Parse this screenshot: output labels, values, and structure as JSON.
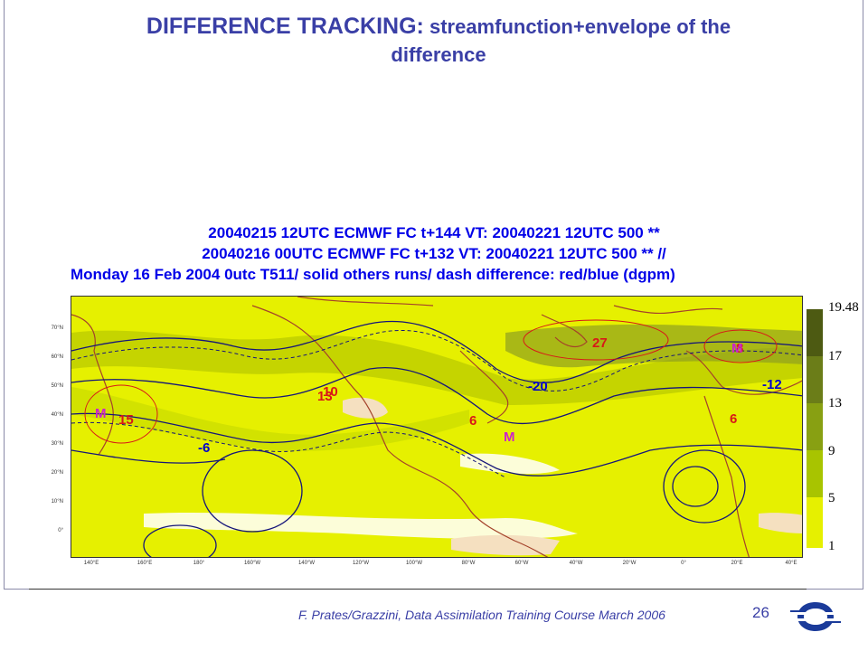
{
  "slide": {
    "title_bold": "DIFFERENCE TRACKING:",
    "title_rest": " streamfunction+envelope of the",
    "title_line2": "difference",
    "footer": "F. Prates/Grazzini,  Data Assimilation Training Course March 2006",
    "page_number": "26",
    "logo_name": "ecmwf-logo"
  },
  "figure": {
    "header_line1": "20040215 12UTC ECMWF  FC t+144 VT:  20040221 12UTC 500 **",
    "header_line2": "20040216 00UTC ECMWF  FC t+132 VT:  20040221 12UTC 500 ** //",
    "header_line3": "Monday 16 Feb 2004 0utc T511/ solid     others runs/ dash     difference: red/blue (dgpm)",
    "lat_labels": [
      "70°N",
      "60°N",
      "50°N",
      "40°N",
      "30°N",
      "20°N",
      "10°N",
      "0°"
    ],
    "lon_labels": [
      "140°E",
      "160°E",
      "180°",
      "160°W",
      "140°W",
      "120°W",
      "100°W",
      "80°W",
      "60°W",
      "40°W",
      "20°W",
      "0°",
      "20°E",
      "40°E"
    ],
    "map_labels": {
      "red": [
        "10",
        "13",
        "15",
        "6",
        "27",
        "6",
        "8"
      ],
      "blue": [
        "-6",
        "-20",
        "-12"
      ],
      "markers": [
        "M",
        "M",
        "M"
      ]
    },
    "colorbar": {
      "labels": [
        "19.48",
        "17",
        "13",
        "9",
        "5",
        "1"
      ],
      "colors": [
        "#4d5a12",
        "#6b7d18",
        "#88a012",
        "#a8c400",
        "#cde000",
        "#e6f000"
      ]
    }
  }
}
